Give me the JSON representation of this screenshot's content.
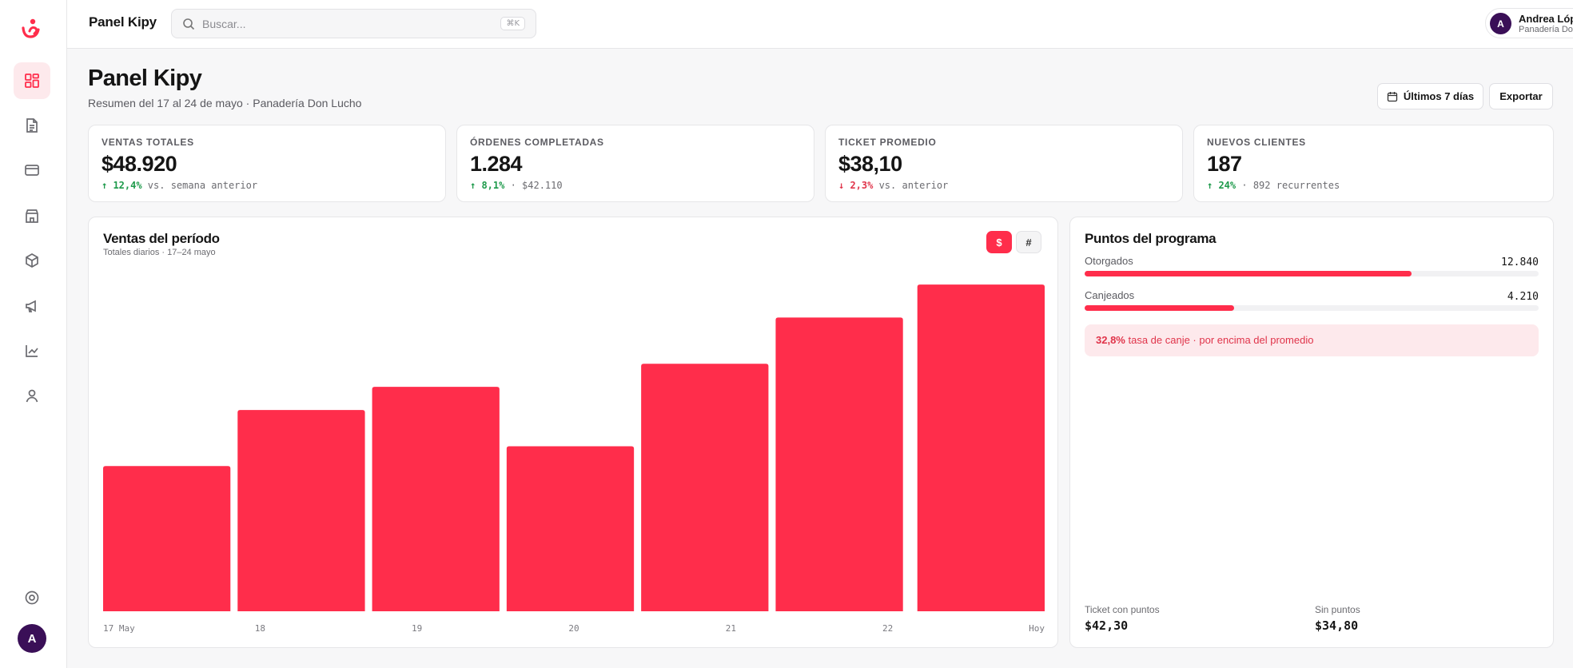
{
  "app": {
    "name": "Panel Kipy"
  },
  "search": {
    "placeholder": "Buscar...",
    "shortcut": "⌘K"
  },
  "user": {
    "name": "Andrea López",
    "business": "Panadería Don Lucho",
    "initial": "A"
  },
  "sidebar": {
    "items": [
      {
        "icon": "dashboard-icon",
        "active": true
      },
      {
        "icon": "document-icon",
        "active": false
      },
      {
        "icon": "credit-card-icon",
        "active": false
      },
      {
        "icon": "store-icon",
        "active": false
      },
      {
        "icon": "package-icon",
        "active": false
      },
      {
        "icon": "megaphone-icon",
        "active": false
      },
      {
        "icon": "chart-line-icon",
        "active": false
      },
      {
        "icon": "user-icon",
        "active": false
      }
    ],
    "bottom_icon": "settings-icon",
    "avatar_initial": "A"
  },
  "page": {
    "title": "Panel Kipy",
    "subtitle": "Resumen del 17 al 24 de mayo · Panadería Don Lucho",
    "range_button": "Últimos 7 días",
    "export_button": "Exportar"
  },
  "kpis": [
    {
      "label": "Ventas totales",
      "value": "$48.920",
      "delta": "12,4%",
      "direction": "up",
      "note": " vs. semana anterior"
    },
    {
      "label": "Órdenes completadas",
      "value": "1.284",
      "delta": "8,1%",
      "direction": "up",
      "note": " · $42.110"
    },
    {
      "label": "Ticket promedio",
      "value": "$38,10",
      "delta": "2,3%",
      "direction": "down",
      "note": " vs. anterior"
    },
    {
      "label": "Nuevos clientes",
      "value": "187",
      "delta": "24%",
      "direction": "up",
      "note": " · 892 recurrentes"
    }
  ],
  "sales_chart": {
    "title": "Ventas del período",
    "subtitle": "Totales diarios · 17–24 mayo",
    "toggle_dollar": "$",
    "toggle_count": "#"
  },
  "chart_data": {
    "type": "bar",
    "categories": [
      "17 May",
      "18",
      "19",
      "20",
      "21",
      "22",
      "Hoy"
    ],
    "values": [
      44,
      61,
      68,
      50,
      75,
      89,
      99
    ],
    "ylim": [
      0,
      100
    ],
    "grid": false,
    "color": "#ff2d4b"
  },
  "points": {
    "title": "Puntos del programa",
    "granted_label": "Otorgados",
    "granted_value": "12.840",
    "granted_fraction": 0.72,
    "redeemed_label": "Canjeados",
    "redeemed_value": "4.210",
    "redeemed_fraction": 0.33,
    "rate_value": "32,8%",
    "rate_text": " tasa de canje · por encima del promedio",
    "ticket_with_label": "Ticket con puntos",
    "ticket_with_value": "$42,30",
    "ticket_without_label": "Sin puntos",
    "ticket_without_value": "$34,80"
  },
  "colors": {
    "accent": "#ff2d4b",
    "accent_soft": "#fde9ec",
    "avatar": "#3a0f57",
    "positive": "#1e9a4b",
    "negative": "#e0344a"
  }
}
